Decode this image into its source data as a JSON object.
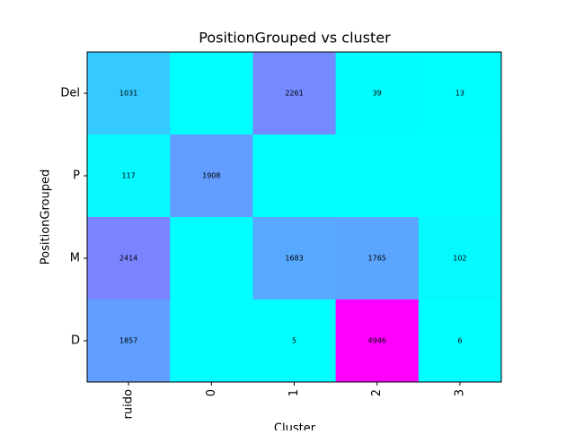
{
  "chart_data": {
    "type": "heatmap",
    "title": "PositionGrouped vs cluster",
    "x_label": "Cluster",
    "y_label": "PositionGrouped",
    "x_categories": [
      "ruido",
      "0",
      "1",
      "2",
      "3"
    ],
    "y_categories": [
      "Del",
      "P",
      "M",
      "D"
    ],
    "values": [
      [
        1031,
        0,
        2261,
        39,
        13
      ],
      [
        117,
        1908,
        0,
        0,
        0
      ],
      [
        2414,
        0,
        1683,
        1765,
        102
      ],
      [
        1857,
        0,
        5,
        4946,
        6
      ]
    ],
    "value_labels": [
      [
        "1031",
        null,
        "2261",
        "39",
        "13"
      ],
      [
        "117",
        "1908",
        null,
        null,
        null
      ],
      [
        "2414",
        null,
        "1683",
        "1765",
        "102"
      ],
      [
        "1857",
        null,
        "5",
        "4946",
        "6"
      ]
    ],
    "colormap": [
      "#00ffff",
      "#ff00ff"
    ],
    "clim": [
      0,
      4946
    ]
  }
}
